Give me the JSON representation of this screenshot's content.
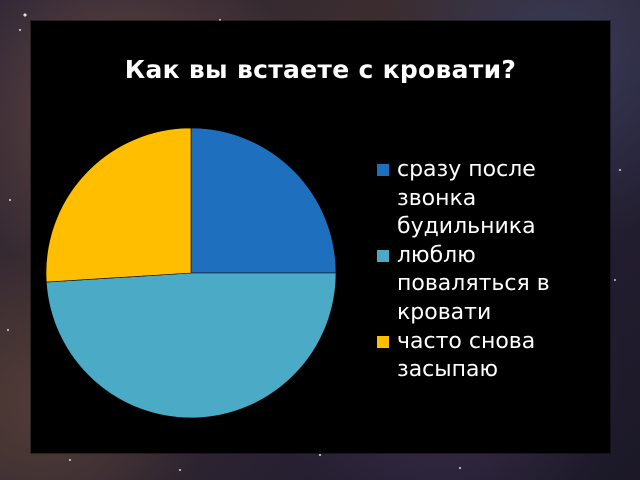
{
  "chart_data": {
    "type": "pie",
    "title": "Как вы встаете с кровати?",
    "categories": [
      "сразу после звонка будильника",
      "люблю поваляться в кровати",
      "часто снова засыпаю"
    ],
    "values": [
      25,
      49,
      26
    ],
    "colors": [
      "#1f6fbf",
      "#4baac6",
      "#ffbf00"
    ],
    "legend_position": "right"
  }
}
